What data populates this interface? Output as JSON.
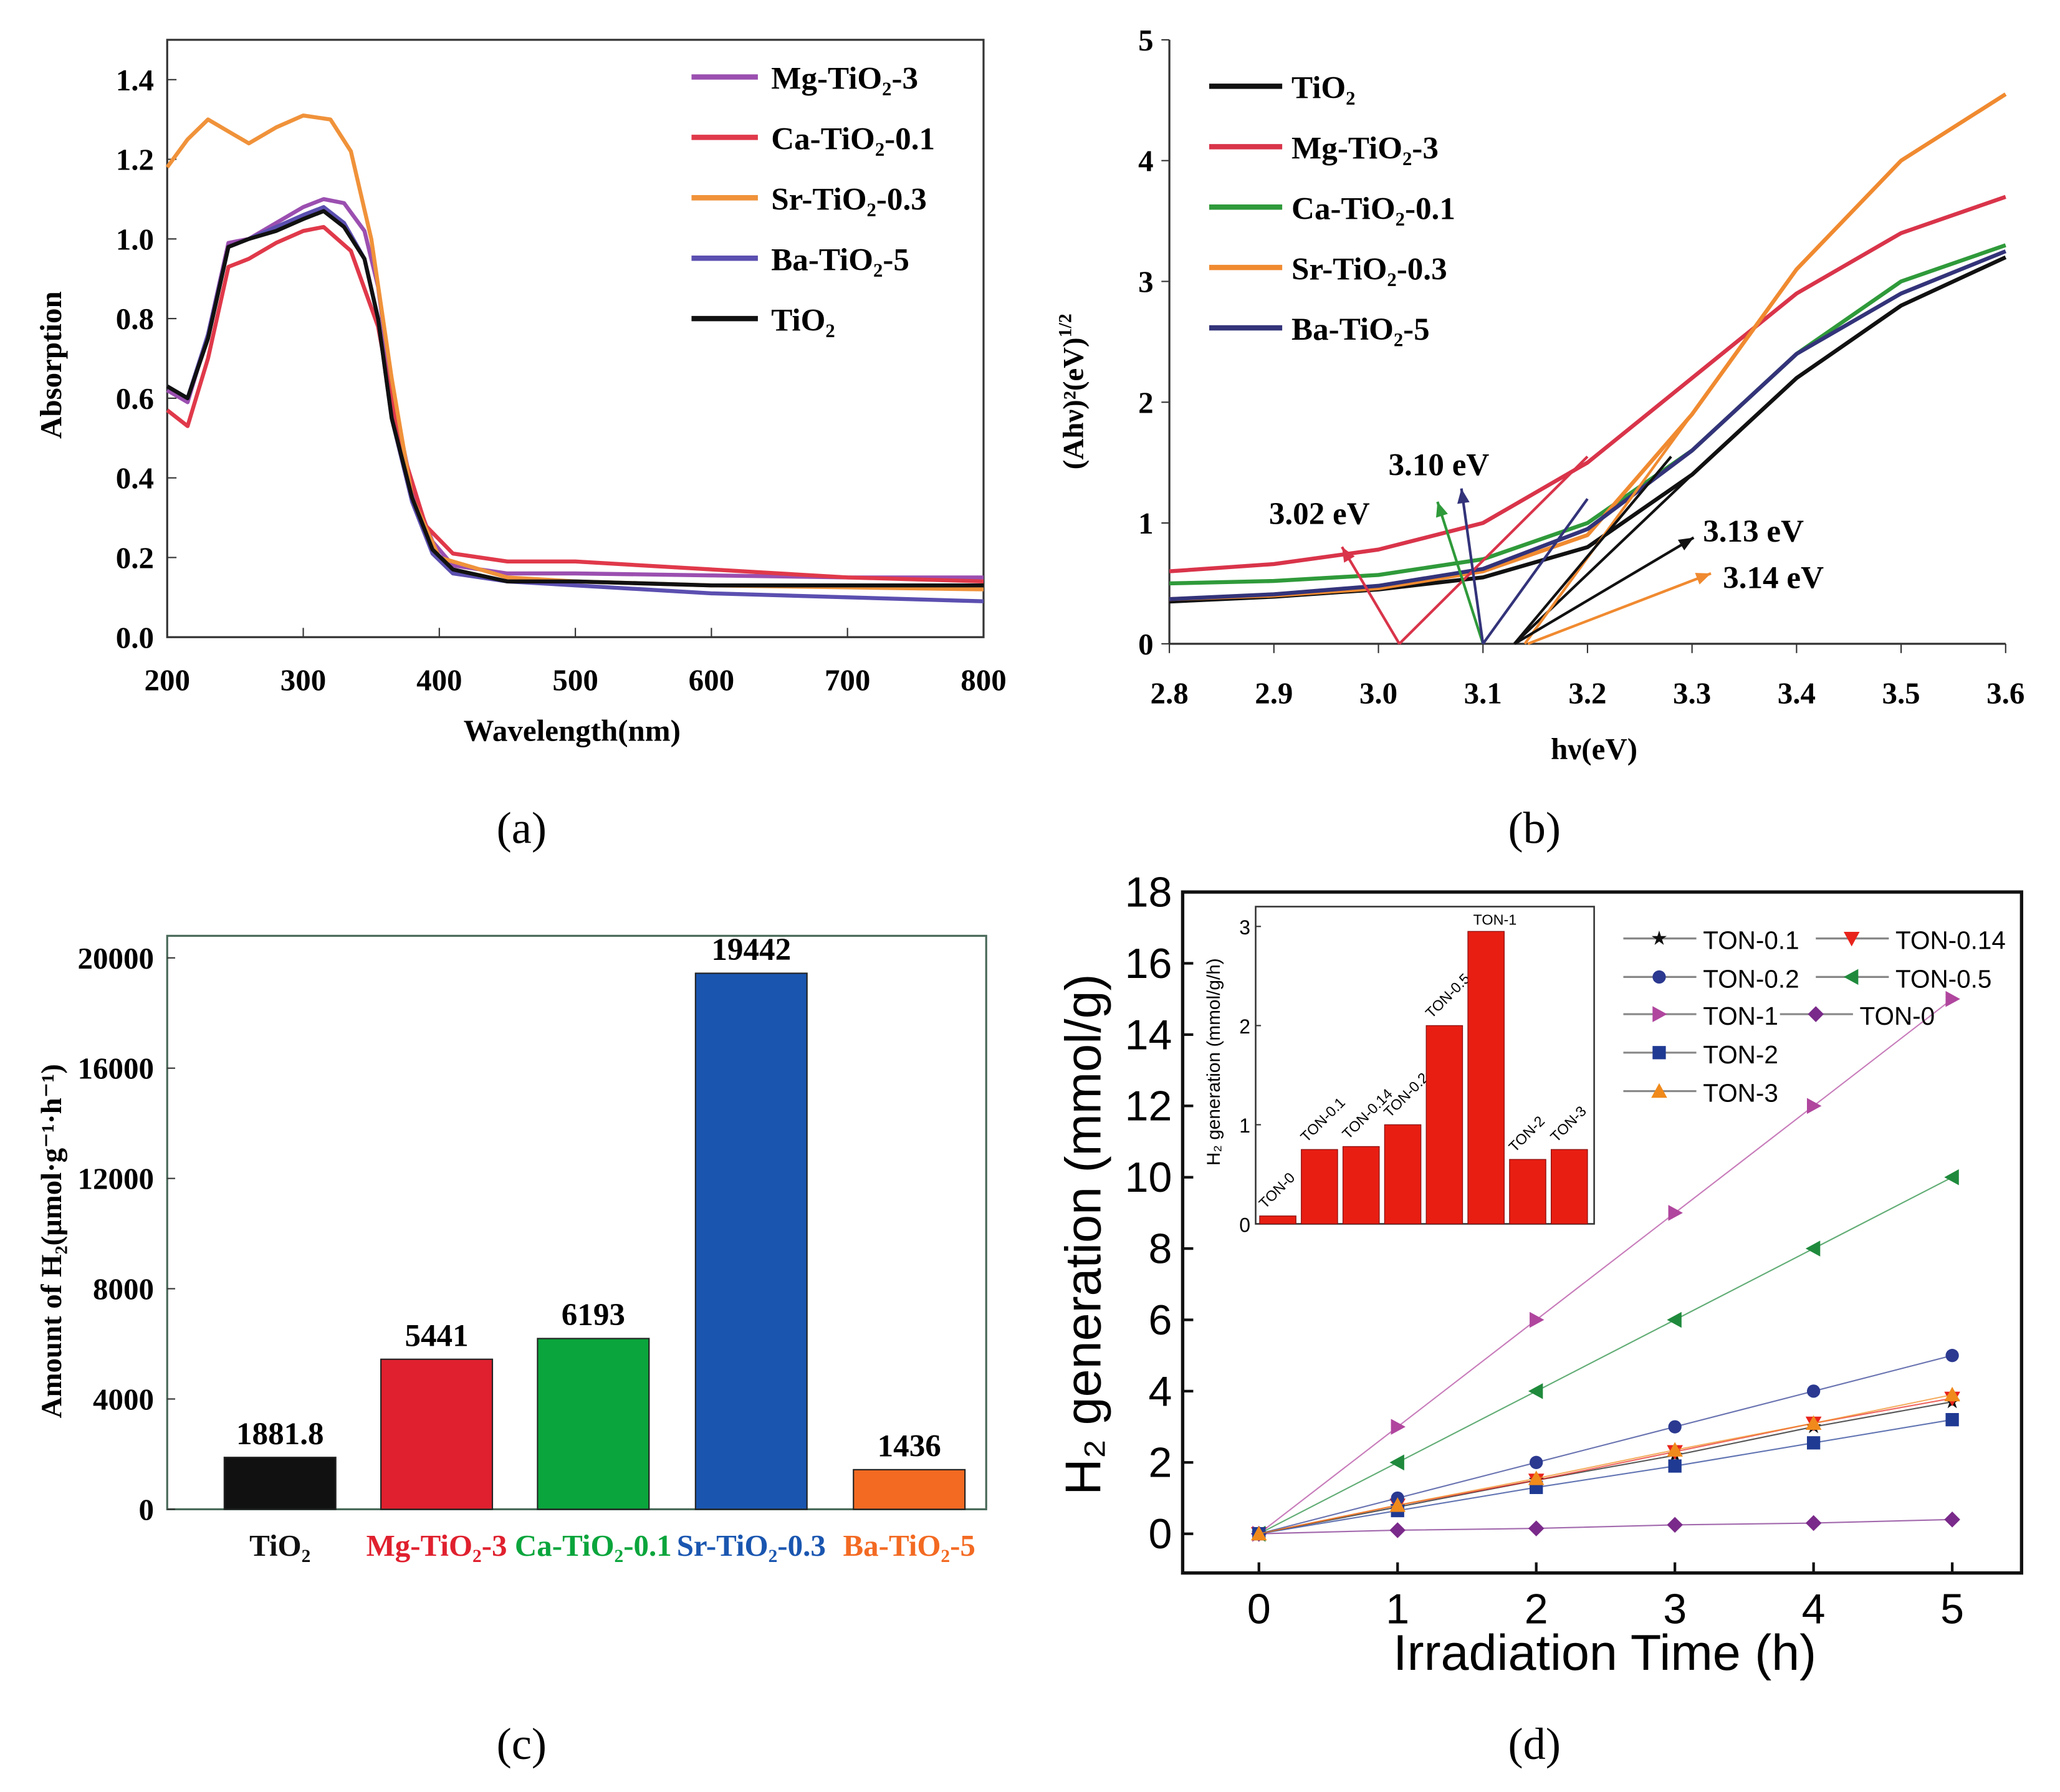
{
  "captions": {
    "a": "(a)",
    "b": "(b)",
    "c": "(c)",
    "d": "(d)"
  },
  "chart_data": [
    {
      "panel": "a",
      "type": "line",
      "xlabel": "Wavelength(nm)",
      "ylabel": "Absorption",
      "xlim": [
        200,
        800
      ],
      "ylim": [
        0,
        1.5
      ],
      "xticks": [
        200,
        300,
        400,
        500,
        600,
        700,
        800
      ],
      "yticks": [
        0.0,
        0.2,
        0.4,
        0.6,
        0.8,
        1.0,
        1.2,
        1.4
      ],
      "legend_position": "top-right",
      "series": [
        {
          "name": "Mg-TiO₂-3",
          "color": "#9b4fb0",
          "points": [
            [
              200,
              0.62
            ],
            [
              215,
              0.59
            ],
            [
              230,
              0.76
            ],
            [
              245,
              0.99
            ],
            [
              260,
              1.0
            ],
            [
              280,
              1.04
            ],
            [
              300,
              1.08
            ],
            [
              315,
              1.1
            ],
            [
              330,
              1.09
            ],
            [
              345,
              1.02
            ],
            [
              355,
              0.88
            ],
            [
              365,
              0.62
            ],
            [
              380,
              0.37
            ],
            [
              395,
              0.24
            ],
            [
              410,
              0.18
            ],
            [
              450,
              0.16
            ],
            [
              500,
              0.16
            ],
            [
              600,
              0.155
            ],
            [
              700,
              0.15
            ],
            [
              800,
              0.15
            ]
          ]
        },
        {
          "name": "Ca-TiO₂-0.1",
          "color": "#e0394a",
          "points": [
            [
              200,
              0.57
            ],
            [
              215,
              0.53
            ],
            [
              230,
              0.7
            ],
            [
              245,
              0.93
            ],
            [
              260,
              0.95
            ],
            [
              280,
              0.99
            ],
            [
              300,
              1.02
            ],
            [
              315,
              1.03
            ],
            [
              335,
              0.97
            ],
            [
              355,
              0.78
            ],
            [
              370,
              0.5
            ],
            [
              390,
              0.28
            ],
            [
              410,
              0.21
            ],
            [
              450,
              0.19
            ],
            [
              500,
              0.19
            ],
            [
              600,
              0.17
            ],
            [
              700,
              0.15
            ],
            [
              800,
              0.14
            ]
          ]
        },
        {
          "name": "Sr-TiO₂-0.3",
          "color": "#f0923a",
          "points": [
            [
              200,
              1.18
            ],
            [
              215,
              1.25
            ],
            [
              230,
              1.3
            ],
            [
              245,
              1.27
            ],
            [
              260,
              1.24
            ],
            [
              280,
              1.28
            ],
            [
              300,
              1.31
            ],
            [
              320,
              1.3
            ],
            [
              335,
              1.22
            ],
            [
              350,
              1.0
            ],
            [
              365,
              0.65
            ],
            [
              380,
              0.35
            ],
            [
              400,
              0.2
            ],
            [
              450,
              0.15
            ],
            [
              500,
              0.14
            ],
            [
              600,
              0.13
            ],
            [
              700,
              0.125
            ],
            [
              800,
              0.12
            ]
          ]
        },
        {
          "name": "Ba-TiO₂-5",
          "color": "#5b4fb0",
          "points": [
            [
              200,
              0.63
            ],
            [
              215,
              0.6
            ],
            [
              230,
              0.76
            ],
            [
              245,
              0.98
            ],
            [
              260,
              1.0
            ],
            [
              280,
              1.03
            ],
            [
              300,
              1.06
            ],
            [
              315,
              1.08
            ],
            [
              330,
              1.04
            ],
            [
              345,
              0.95
            ],
            [
              355,
              0.8
            ],
            [
              365,
              0.55
            ],
            [
              380,
              0.34
            ],
            [
              395,
              0.21
            ],
            [
              410,
              0.16
            ],
            [
              450,
              0.14
            ],
            [
              500,
              0.13
            ],
            [
              600,
              0.11
            ],
            [
              700,
              0.1
            ],
            [
              800,
              0.09
            ]
          ]
        },
        {
          "name": "TiO₂",
          "color": "#111111",
          "points": [
            [
              200,
              0.63
            ],
            [
              215,
              0.6
            ],
            [
              230,
              0.75
            ],
            [
              245,
              0.98
            ],
            [
              260,
              1.0
            ],
            [
              280,
              1.02
            ],
            [
              300,
              1.05
            ],
            [
              315,
              1.07
            ],
            [
              330,
              1.03
            ],
            [
              345,
              0.95
            ],
            [
              355,
              0.8
            ],
            [
              365,
              0.55
            ],
            [
              380,
              0.35
            ],
            [
              395,
              0.22
            ],
            [
              410,
              0.17
            ],
            [
              450,
              0.14
            ],
            [
              500,
              0.14
            ],
            [
              600,
              0.13
            ],
            [
              700,
              0.13
            ],
            [
              800,
              0.13
            ]
          ]
        }
      ]
    },
    {
      "panel": "b",
      "type": "line",
      "xlabel": "hν(eV)",
      "ylabel": "(Ahν)²(eV)",
      "ylabel_sup": "1/2",
      "xlim": [
        2.8,
        3.6
      ],
      "ylim": [
        0,
        5
      ],
      "xticks": [
        2.8,
        2.9,
        3.0,
        3.1,
        3.2,
        3.3,
        3.4,
        3.5,
        3.6
      ],
      "yticks": [
        0,
        1,
        2,
        3,
        4,
        5
      ],
      "legend_position": "top-left",
      "series": [
        {
          "name": "TiO₂",
          "color": "#111111",
          "points": [
            [
              2.8,
              0.35
            ],
            [
              2.9,
              0.39
            ],
            [
              3.0,
              0.45
            ],
            [
              3.1,
              0.55
            ],
            [
              3.2,
              0.8
            ],
            [
              3.3,
              1.4
            ],
            [
              3.4,
              2.2
            ],
            [
              3.5,
              2.8
            ],
            [
              3.6,
              3.2
            ]
          ]
        },
        {
          "name": "Mg-TiO₂-3",
          "color": "#d9344a",
          "points": [
            [
              2.8,
              0.6
            ],
            [
              2.9,
              0.66
            ],
            [
              3.0,
              0.78
            ],
            [
              3.1,
              1.0
            ],
            [
              3.2,
              1.5
            ],
            [
              3.3,
              2.2
            ],
            [
              3.4,
              2.9
            ],
            [
              3.5,
              3.4
            ],
            [
              3.6,
              3.7
            ]
          ]
        },
        {
          "name": "Ca-TiO₂-0.1",
          "color": "#2f9a3a",
          "points": [
            [
              2.8,
              0.5
            ],
            [
              2.9,
              0.52
            ],
            [
              3.0,
              0.57
            ],
            [
              3.1,
              0.7
            ],
            [
              3.2,
              1.0
            ],
            [
              3.3,
              1.6
            ],
            [
              3.4,
              2.4
            ],
            [
              3.5,
              3.0
            ],
            [
              3.6,
              3.3
            ]
          ]
        },
        {
          "name": "Sr-TiO₂-0.3",
          "color": "#f08a30",
          "points": [
            [
              2.8,
              0.37
            ],
            [
              2.9,
              0.4
            ],
            [
              3.0,
              0.46
            ],
            [
              3.1,
              0.6
            ],
            [
              3.2,
              0.9
            ],
            [
              3.3,
              1.9
            ],
            [
              3.4,
              3.1
            ],
            [
              3.5,
              4.0
            ],
            [
              3.6,
              4.55
            ]
          ]
        },
        {
          "name": "Ba-TiO₂-5",
          "color": "#33337a",
          "points": [
            [
              2.8,
              0.37
            ],
            [
              2.9,
              0.41
            ],
            [
              3.0,
              0.48
            ],
            [
              3.1,
              0.62
            ],
            [
              3.2,
              0.95
            ],
            [
              3.3,
              1.6
            ],
            [
              3.4,
              2.4
            ],
            [
              3.5,
              2.9
            ],
            [
              3.6,
              3.25
            ]
          ]
        }
      ],
      "annotations": [
        {
          "text": "3.02 eV",
          "value": 3.02,
          "color": "#d9344a"
        },
        {
          "text": "3.10 eV",
          "value": 3.1,
          "color": "#2f9a3a"
        },
        {
          "text": "3.13 eV",
          "value": 3.13,
          "color": "#111111"
        },
        {
          "text": "3.14 eV",
          "value": 3.14,
          "color": "#f08a30"
        }
      ]
    },
    {
      "panel": "c",
      "type": "bar",
      "ylabel": "Amount of H₂(μmol·g⁻¹·h⁻¹)",
      "ylim": [
        0,
        20800
      ],
      "yticks": [
        0,
        4000,
        8000,
        12000,
        16000,
        20000
      ],
      "categories": [
        "TiO₂",
        "Mg-TiO₂-3",
        "Ca-TiO₂-0.1",
        "Sr-TiO₂-0.3",
        "Ba-TiO₂-5"
      ],
      "values": [
        1881.8,
        5441,
        6193,
        19442,
        1436
      ],
      "labels": [
        "1881.8",
        "5441",
        "6193",
        "19442",
        "1436"
      ],
      "colors": [
        "#111111",
        "#e0202e",
        "#0aa53c",
        "#1a56b0",
        "#f36a22"
      ]
    },
    {
      "panel": "d",
      "type": "line",
      "xlabel": "Irradiation Time (h)",
      "ylabel": "H₂ generation (mmol/g)",
      "xlim": [
        -0.55,
        5.5
      ],
      "ylim": [
        -1.1,
        18
      ],
      "xticks": [
        0,
        1,
        2,
        3,
        4,
        5
      ],
      "yticks": [
        0,
        2,
        4,
        6,
        8,
        10,
        12,
        14,
        16,
        18
      ],
      "legend_position": "top-right",
      "x": [
        0,
        1,
        2,
        3,
        4,
        5
      ],
      "series": [
        {
          "name": "TON-0.1",
          "marker": "star",
          "color": "#111111",
          "values": [
            0,
            0.75,
            1.5,
            2.2,
            3.0,
            3.7
          ]
        },
        {
          "name": "TON-0.14",
          "marker": "triangle-down",
          "color": "#e8241c",
          "values": [
            0,
            0.8,
            1.5,
            2.3,
            3.1,
            3.8
          ]
        },
        {
          "name": "TON-0.2",
          "marker": "circle",
          "color": "#2b3990",
          "values": [
            0,
            1.0,
            2.0,
            3.0,
            4.0,
            5.0
          ]
        },
        {
          "name": "TON-0.5",
          "marker": "triangle-left",
          "color": "#1f8a3c",
          "values": [
            0,
            2.0,
            4.0,
            6.0,
            8.0,
            10.0
          ]
        },
        {
          "name": "TON-1",
          "marker": "triangle-right",
          "color": "#b0469e",
          "values": [
            0,
            3.0,
            6.0,
            9.0,
            12.0,
            15.0
          ]
        },
        {
          "name": "TON-0",
          "marker": "diamond",
          "color": "#7a2a8a",
          "values": [
            0,
            0.1,
            0.15,
            0.25,
            0.3,
            0.4
          ]
        },
        {
          "name": "TON-2",
          "marker": "square",
          "color": "#1f3a93",
          "values": [
            0,
            0.65,
            1.3,
            1.9,
            2.55,
            3.2
          ]
        },
        {
          "name": "TON-3",
          "marker": "triangle-up",
          "color": "#f08a1c",
          "values": [
            0,
            0.8,
            1.55,
            2.35,
            3.1,
            3.9
          ]
        }
      ],
      "inset": {
        "type": "bar",
        "ylabel": "H₂ generation (mmol/g/h)",
        "ylim": [
          0,
          3.2
        ],
        "yticks": [
          0,
          1,
          2,
          3
        ],
        "categories": [
          "TON-0",
          "TON-0.1",
          "TON-0.14",
          "TON-0.2",
          "TON-0.5",
          "TON-1",
          "TON-2",
          "TON-3"
        ],
        "values": [
          0.08,
          0.75,
          0.78,
          1.0,
          2.0,
          2.95,
          0.65,
          0.75
        ],
        "color": "#e81e12"
      }
    }
  ]
}
